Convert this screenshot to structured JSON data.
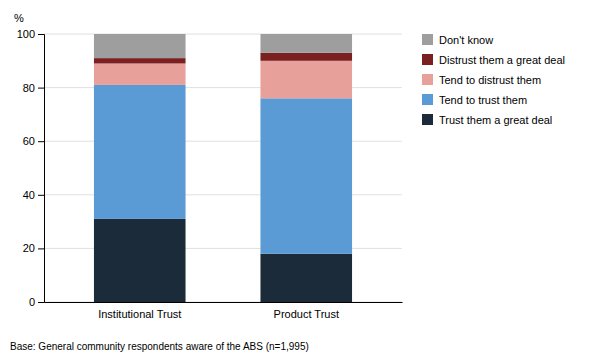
{
  "chart_data": {
    "type": "bar",
    "stacked": true,
    "categories": [
      "Institutional Trust",
      "Product Trust"
    ],
    "series": [
      {
        "name": "Trust them a great deal",
        "color": "#1c2b3a",
        "values": [
          31,
          18
        ]
      },
      {
        "name": "Tend to trust them",
        "color": "#5b9bd5",
        "values": [
          50,
          58
        ]
      },
      {
        "name": "Tend to distrust them",
        "color": "#e8a09a",
        "values": [
          8,
          14
        ]
      },
      {
        "name": "Distrust them a great deal",
        "color": "#7b2020",
        "values": [
          2,
          3
        ]
      },
      {
        "name": "Don't know",
        "color": "#9e9e9e",
        "values": [
          9,
          7
        ]
      }
    ],
    "ylabel": "%",
    "ylim": [
      0,
      100
    ],
    "yticks": [
      0,
      20,
      40,
      60,
      80,
      100
    ],
    "grid": true,
    "legend": "right",
    "footnote": "Base: General community respondents aware of the ABS (n=1,995)"
  }
}
